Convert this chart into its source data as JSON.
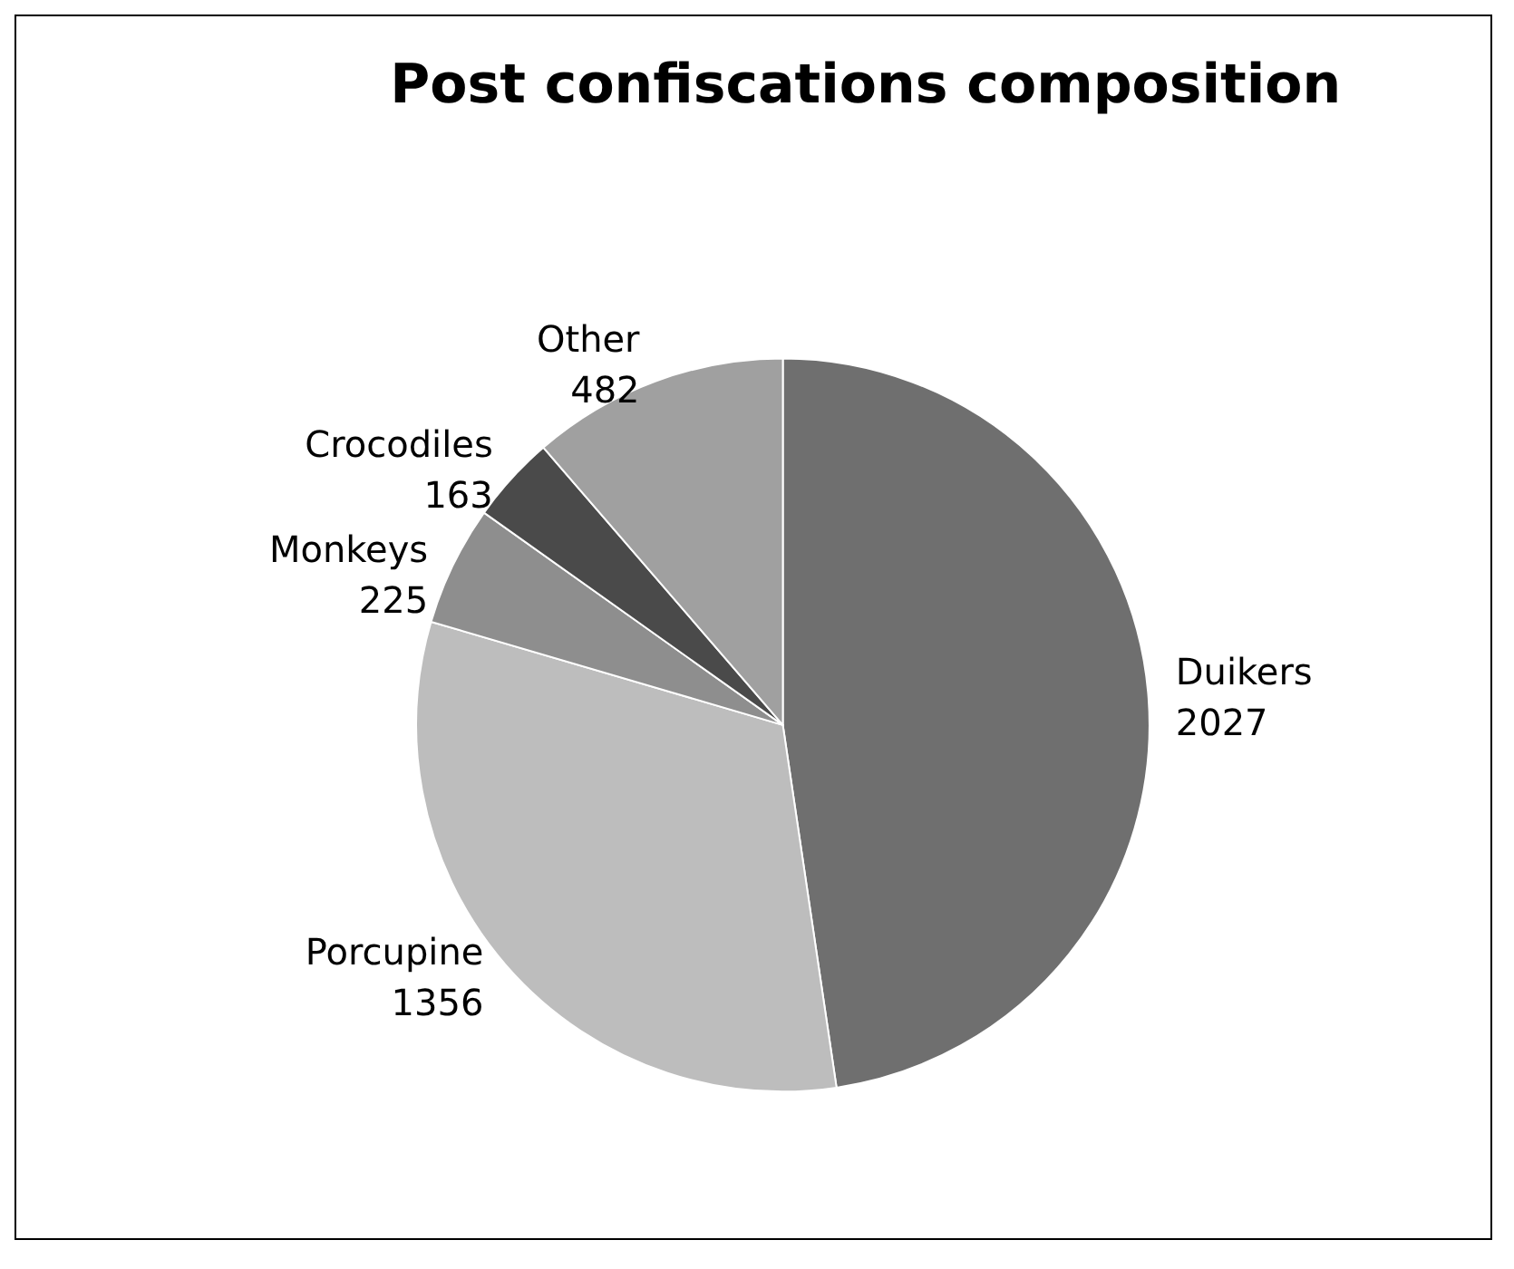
{
  "chart_data": {
    "type": "pie",
    "title": "Post confiscations composition",
    "categories": [
      "Duikers",
      "Porcupine",
      "Monkeys",
      "Crocodiles",
      "Other"
    ],
    "values": [
      2027,
      1356,
      225,
      163,
      482
    ],
    "colors": [
      "#6f6f6f",
      "#bdbdbd",
      "#8e8e8e",
      "#4a4a4a",
      "#a0a0a0"
    ],
    "data_labels": true
  }
}
